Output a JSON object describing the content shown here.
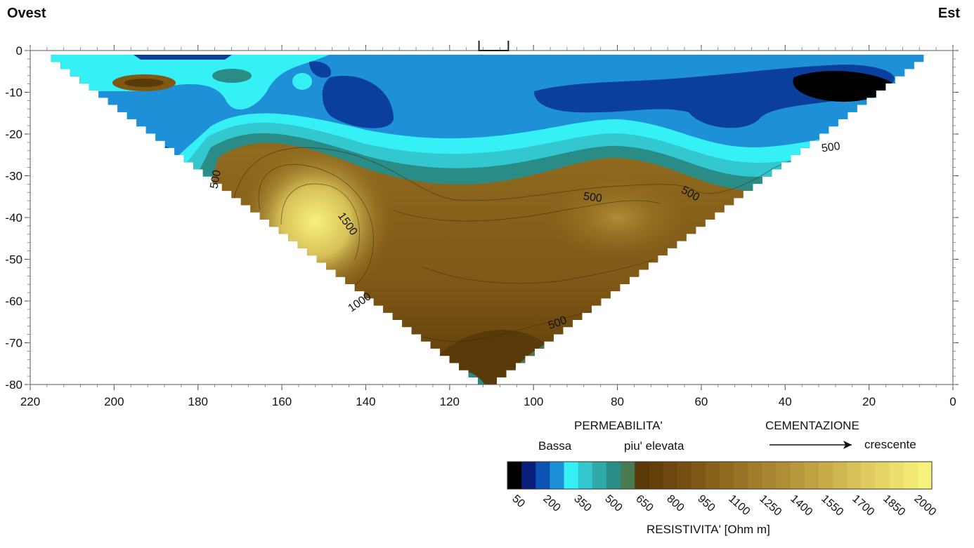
{
  "chart_data": {
    "type": "heatmap",
    "left_label": "Ovest",
    "right_label": "Est",
    "x_ticks": [
      "220",
      "200",
      "180",
      "160",
      "140",
      "120",
      "100",
      "80",
      "60",
      "40",
      "20",
      "0"
    ],
    "x_tick_values": [
      220,
      200,
      180,
      160,
      140,
      120,
      100,
      80,
      60,
      40,
      20,
      0
    ],
    "y_ticks": [
      "0",
      "-10",
      "-20",
      "-30",
      "-40",
      "-50",
      "-60",
      "-70",
      "-80"
    ],
    "y_tick_values": [
      0,
      -10,
      -20,
      -30,
      -40,
      -50,
      -60,
      -70,
      -80
    ],
    "xlim": [
      220,
      0
    ],
    "ylim": [
      -80,
      0
    ],
    "section": {
      "top_left_x": 215,
      "top_right_x": 7,
      "apex_x": 111,
      "apex_y": -80
    },
    "contour_labels": [
      {
        "text": "500",
        "x": 175,
        "y": -31,
        "angle": -80
      },
      {
        "text": "1500",
        "x": 145,
        "y": -42,
        "angle": 55
      },
      {
        "text": "500",
        "x": 86,
        "y": -36,
        "angle": 8
      },
      {
        "text": "500",
        "x": 63,
        "y": -35,
        "angle": 30
      },
      {
        "text": "500",
        "x": 29,
        "y": -24,
        "angle": -8
      },
      {
        "text": "1000",
        "x": 141,
        "y": -61,
        "angle": -35
      },
      {
        "text": "500",
        "x": 94,
        "y": -66,
        "angle": -20
      }
    ],
    "annotations": {
      "permeability_title": "PERMEABILITA'",
      "permeability_low": "Bassa",
      "permeability_high": "piu' elevata",
      "cementation_title": "CEMENTAZIONE",
      "cementation_increasing": "crescente"
    },
    "colorbar": {
      "title": "RESISTIVITA' [Ohm m]",
      "tick_labels": [
        "50",
        "200",
        "350",
        "500",
        "650",
        "800",
        "950",
        "1100",
        "1250",
        "1400",
        "1550",
        "1700",
        "1850",
        "2000"
      ],
      "tick_values": [
        50,
        200,
        350,
        500,
        650,
        800,
        950,
        1100,
        1250,
        1400,
        1550,
        1700,
        1850,
        2000
      ],
      "colors": [
        "#000000",
        "#0a1f7a",
        "#0b52b3",
        "#1e90d8",
        "#35f0f5",
        "#33c7cf",
        "#2fa8a8",
        "#2a8c86",
        "#4a7a52",
        "#5a3a08",
        "#643f0a",
        "#6d470f",
        "#764f13",
        "#7f5816",
        "#87611a",
        "#8f6a1f",
        "#987325",
        "#a07c2b",
        "#a88531",
        "#b08e36",
        "#b8983c",
        "#c0a243",
        "#c8ac4a",
        "#d0b651",
        "#d8c158",
        "#dfcb5f",
        "#e6d566",
        "#ecdf6d",
        "#f2e975",
        "#f7f27c"
      ]
    }
  }
}
